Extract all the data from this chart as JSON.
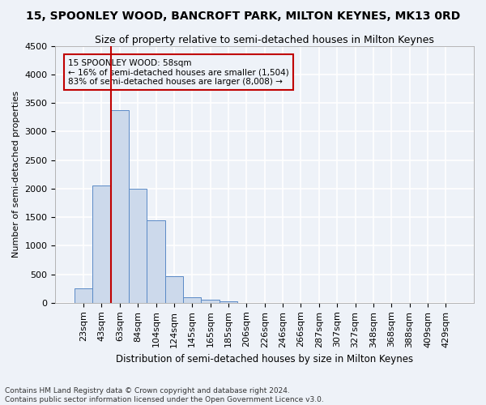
{
  "title": "15, SPOONLEY WOOD, BANCROFT PARK, MILTON KEYNES, MK13 0RD",
  "subtitle": "Size of property relative to semi-detached houses in Milton Keynes",
  "xlabel": "Distribution of semi-detached houses by size in Milton Keynes",
  "ylabel": "Number of semi-detached properties",
  "footnote1": "Contains HM Land Registry data © Crown copyright and database right 2024.",
  "footnote2": "Contains public sector information licensed under the Open Government Licence v3.0.",
  "categories": [
    "23sqm",
    "43sqm",
    "63sqm",
    "84sqm",
    "104sqm",
    "124sqm",
    "145sqm",
    "165sqm",
    "185sqm",
    "206sqm",
    "226sqm",
    "246sqm",
    "266sqm",
    "287sqm",
    "307sqm",
    "327sqm",
    "348sqm",
    "368sqm",
    "388sqm",
    "409sqm",
    "429sqm"
  ],
  "values": [
    250,
    2050,
    3380,
    2000,
    1450,
    460,
    100,
    50,
    30,
    0,
    0,
    0,
    0,
    0,
    0,
    0,
    0,
    0,
    0,
    0,
    0
  ],
  "bar_color": "#ccd9eb",
  "bar_edge_color": "#5a8ac6",
  "ylim": [
    0,
    4500
  ],
  "yticks": [
    0,
    500,
    1000,
    1500,
    2000,
    2500,
    3000,
    3500,
    4000,
    4500
  ],
  "vline_color": "#c00000",
  "vline_bin_index": 2,
  "annotation_text_line1": "15 SPOONLEY WOOD: 58sqm",
  "annotation_text_line2": "← 16% of semi-detached houses are smaller (1,504)",
  "annotation_text_line3": "83% of semi-detached houses are larger (8,008) →",
  "annotation_box_color": "#c00000",
  "background_color": "#eef2f8",
  "grid_color": "#ffffff",
  "title_fontsize": 10,
  "subtitle_fontsize": 9,
  "axis_fontsize": 8,
  "footnote_fontsize": 6.5
}
